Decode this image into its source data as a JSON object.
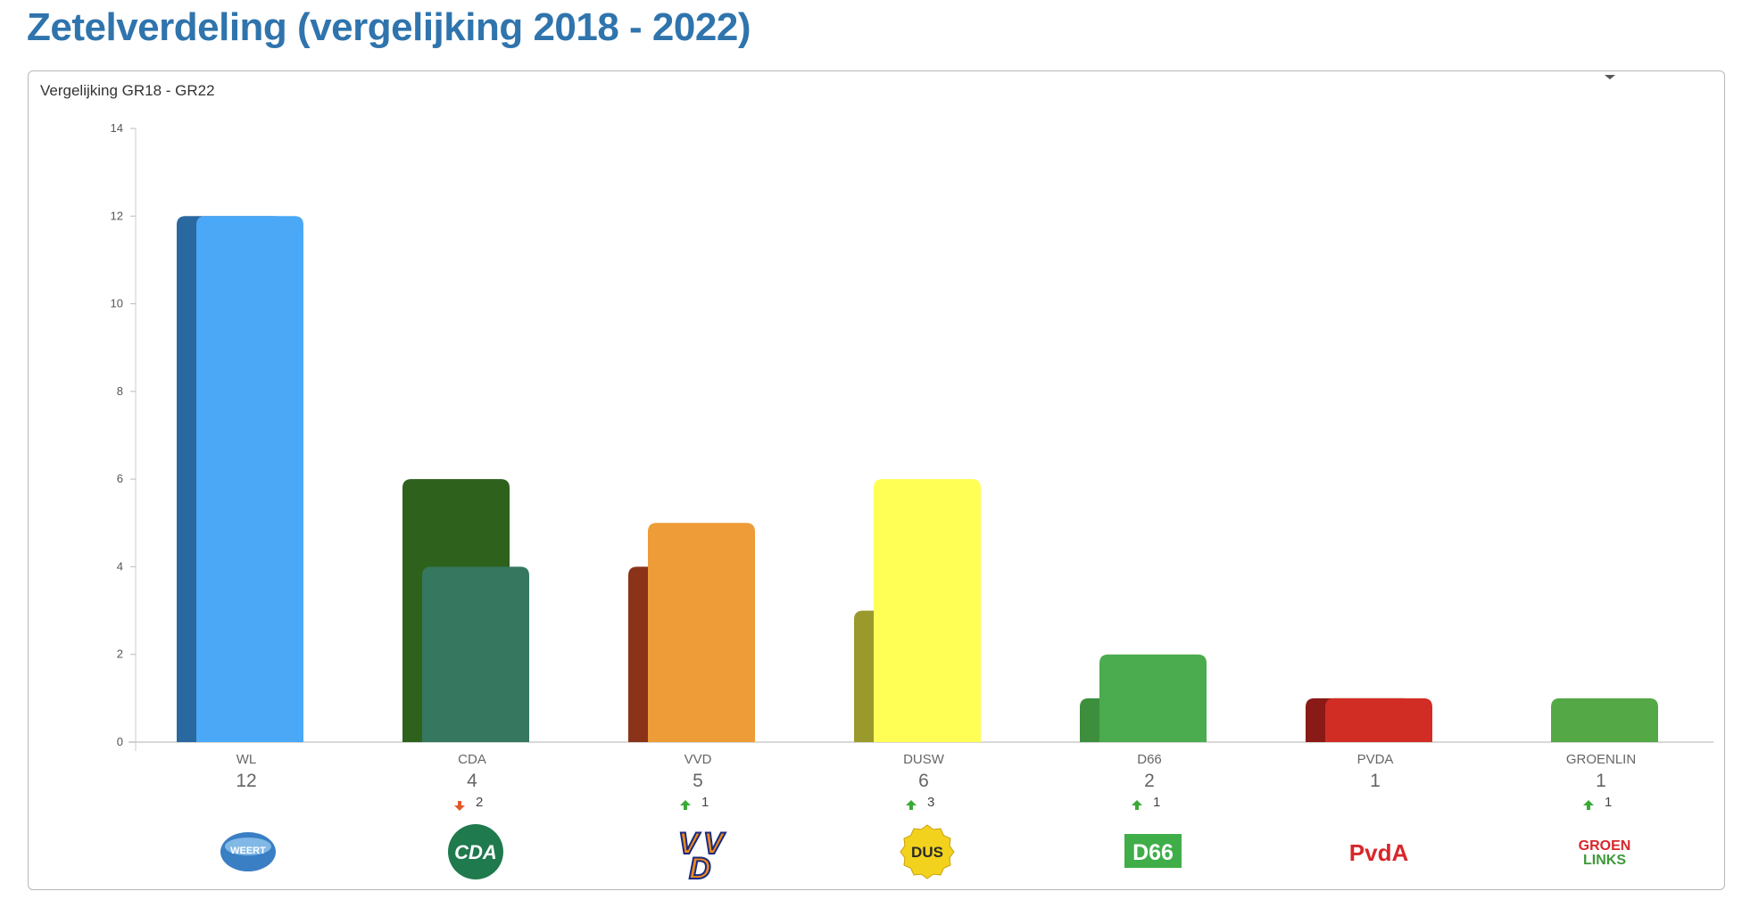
{
  "page": {
    "title": "Zetelverdeling (vergelijking 2018 - 2022)"
  },
  "chart_data": {
    "type": "bar",
    "title": "Vergelijking GR18 - GR22",
    "xlabel": "",
    "ylabel": "",
    "ylim": [
      0,
      14
    ],
    "yticks": [
      0,
      2,
      4,
      6,
      8,
      10,
      12,
      14
    ],
    "grid": false,
    "categories": [
      "WL",
      "CDA",
      "VVD",
      "DUSW",
      "D66",
      "PVDA",
      "GROENLIN"
    ],
    "series": [
      {
        "values": [
          12,
          6,
          4,
          3,
          1,
          1,
          0
        ]
      },
      {
        "values": [
          12,
          4,
          5,
          6,
          2,
          1,
          1
        ]
      }
    ],
    "value_labels": [
      "12",
      "4",
      "5",
      "6",
      "2",
      "1",
      "1"
    ],
    "changes": [
      {
        "direction": "none",
        "text": ""
      },
      {
        "direction": "down",
        "text": "2"
      },
      {
        "direction": "up",
        "text": "1"
      },
      {
        "direction": "up",
        "text": "3"
      },
      {
        "direction": "up",
        "text": "1"
      },
      {
        "direction": "none",
        "text": ""
      },
      {
        "direction": "up",
        "text": "1"
      }
    ],
    "colors": {
      "current": [
        "#4aa8f7",
        "#35785f",
        "#ee9c38",
        "#ffff55",
        "#4aab4f",
        "#d12d25",
        "#54a846"
      ],
      "previous": [
        "#2a68a0",
        "#2d611c",
        "#8a3318",
        "#9a9a2c",
        "#3d8f3e",
        "#8a1a17",
        "#54a846"
      ],
      "up_arrow": "#3aa935",
      "down_arrow": "#e05a2a"
    },
    "logos": [
      {
        "icon": "weert-lokaal-logo",
        "text": "WEERT",
        "color": "#3a7fc4"
      },
      {
        "icon": "cda-logo",
        "text": "CDA",
        "color": "#1f7a4d"
      },
      {
        "icon": "vvd-logo",
        "text": "VVD",
        "color": "#ee8a1a"
      },
      {
        "icon": "dus-logo",
        "text": "DUS",
        "color": "#f2d21c"
      },
      {
        "icon": "d66-logo",
        "text": "D66",
        "color": "#3fae49"
      },
      {
        "icon": "pvda-logo",
        "text": "PvdA",
        "color": "#d7272b"
      },
      {
        "icon": "groenlinks-logo",
        "text": "GROEN LINKS",
        "color": "#d7272b"
      }
    ]
  }
}
